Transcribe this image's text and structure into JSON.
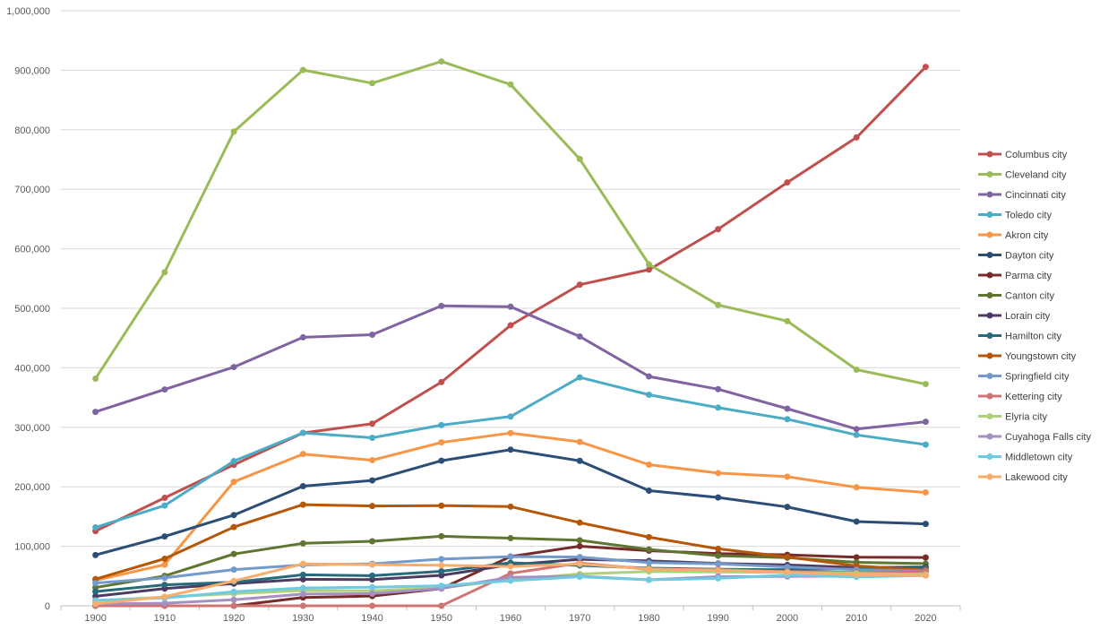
{
  "chart_data": {
    "type": "line",
    "title": "",
    "xlabel": "",
    "ylabel": "",
    "x": [
      "1900",
      "1910",
      "1920",
      "1930",
      "1940",
      "1950",
      "1960",
      "1970",
      "1980",
      "1990",
      "2000",
      "2010",
      "2020"
    ],
    "ylim": [
      0,
      1000000
    ],
    "yticks": [
      0,
      100000,
      200000,
      300000,
      400000,
      500000,
      600000,
      700000,
      800000,
      900000,
      1000000
    ],
    "ytick_labels": [
      "0",
      "100,000",
      "200,000",
      "300,000",
      "400,000",
      "500,000",
      "600,000",
      "700,000",
      "800,000",
      "900,000",
      "1,000,000"
    ],
    "grid": true,
    "legend": "right",
    "series": [
      {
        "name": "Columbus city",
        "color": "#c0504d",
        "values": [
          125560,
          181511,
          237031,
          290564,
          306087,
          375901,
          471316,
          539677,
          564871,
          632910,
          711470,
          787033,
          905748
        ]
      },
      {
        "name": "Cleveland city",
        "color": "#9bbb59",
        "values": [
          381768,
          560663,
          796841,
          900429,
          878336,
          914808,
          876050,
          750903,
          573822,
          505616,
          478403,
          396815,
          372624
        ]
      },
      {
        "name": "Cincinnati city",
        "color": "#8064a2",
        "values": [
          325902,
          363591,
          401247,
          451160,
          455610,
          503998,
          502550,
          452524,
          385457,
          364040,
          331285,
          296943,
          309317
        ]
      },
      {
        "name": "Toledo city",
        "color": "#4bacc6",
        "values": [
          131822,
          168497,
          243164,
          290718,
          282349,
          303616,
          318003,
          383818,
          354635,
          332943,
          313619,
          287208,
          270871
        ]
      },
      {
        "name": "Akron city",
        "color": "#f79646",
        "values": [
          42728,
          69067,
          208435,
          255040,
          244791,
          274605,
          290351,
          275425,
          237177,
          223019,
          217074,
          199110,
          190469
        ]
      },
      {
        "name": "Dayton city",
        "color": "#2c4d75",
        "values": [
          85333,
          116577,
          152559,
          200982,
          210718,
          243872,
          262332,
          243601,
          193536,
          182044,
          166179,
          141527,
          137644
        ]
      },
      {
        "name": "Parma city",
        "color": "#772c2a",
        "values": [
          0,
          0,
          0,
          13899,
          16365,
          28897,
          82845,
          100216,
          92548,
          87876,
          85655,
          81601,
          81146
        ]
      },
      {
        "name": "Canton city",
        "color": "#5f7530",
        "values": [
          30667,
          50217,
          87091,
          104906,
          108401,
          116912,
          113631,
          110053,
          94730,
          84161,
          80806,
          73007,
          70872
        ]
      },
      {
        "name": "Lorain city",
        "color": "#4d3b62",
        "values": [
          16028,
          28883,
          37295,
          44512,
          44125,
          51202,
          68932,
          78185,
          75416,
          71245,
          68652,
          64097,
          65211
        ]
      },
      {
        "name": "Hamilton city",
        "color": "#276a7c",
        "values": [
          23914,
          35279,
          39675,
          52176,
          50592,
          57951,
          72354,
          67865,
          63189,
          61368,
          60690,
          62477,
          63399
        ]
      },
      {
        "name": "Youngstown city",
        "color": "#b65708",
        "values": [
          44885,
          79066,
          132358,
          170002,
          167720,
          168330,
          166689,
          139788,
          115436,
          95732,
          82026,
          66982,
          60068
        ]
      },
      {
        "name": "Springfield city",
        "color": "#729aca",
        "values": [
          38253,
          46921,
          60840,
          68743,
          70662,
          78508,
          82723,
          81926,
          72563,
          70487,
          65358,
          60608,
          58662
        ]
      },
      {
        "name": "Kettering city",
        "color": "#d07472",
        "values": [
          0,
          0,
          0,
          0,
          0,
          0,
          54462,
          71864,
          61186,
          60569,
          57502,
          56163,
          57862
        ]
      },
      {
        "name": "Elyria city",
        "color": "#afd07a",
        "values": [
          8791,
          14825,
          20474,
          25633,
          25120,
          30307,
          43782,
          53427,
          57538,
          56746,
          55953,
          54533,
          52656
        ]
      },
      {
        "name": "Cuyahoga Falls city",
        "color": "#a68fc1",
        "values": [
          3186,
          4386,
          10200,
          19797,
          20546,
          29195,
          47922,
          49678,
          43710,
          48950,
          49374,
          49652,
          51114
        ]
      },
      {
        "name": "Middletown city",
        "color": "#6fcbe0",
        "values": [
          9215,
          13152,
          23594,
          29992,
          31220,
          33695,
          42115,
          48767,
          43719,
          46022,
          51605,
          48694,
          50987
        ]
      },
      {
        "name": "Lakewood city",
        "color": "#f9ad6c",
        "values": [
          3355,
          15181,
          41732,
          70509,
          69160,
          68071,
          66154,
          70173,
          61963,
          59718,
          56646,
          52131,
          50942
        ]
      }
    ]
  }
}
